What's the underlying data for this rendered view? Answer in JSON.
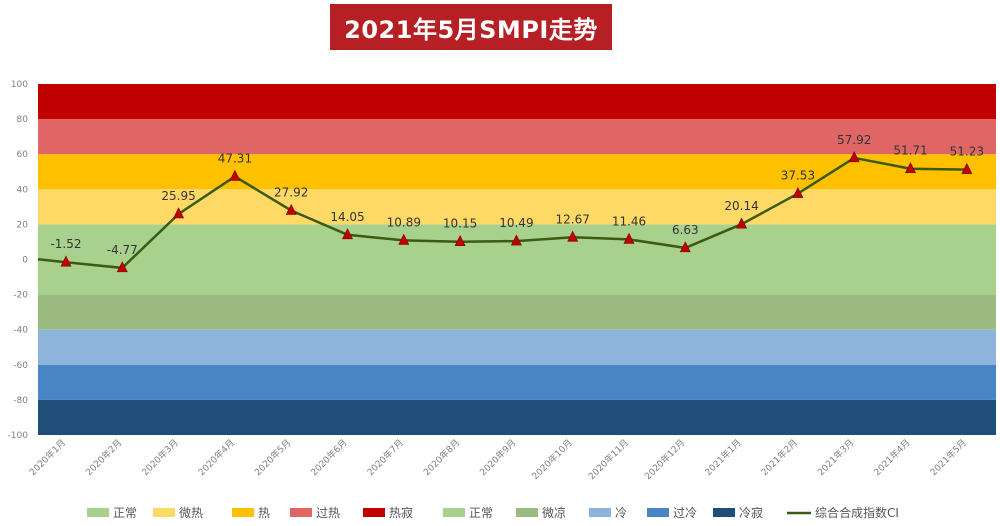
{
  "title": "2021年5月SMPI走势",
  "chart_data": {
    "type": "line",
    "title": "2021年5月SMPI走势",
    "xlabel": "",
    "ylabel": "",
    "ylim": [
      -100,
      100
    ],
    "yticks": [
      100,
      80,
      60,
      40,
      20,
      0,
      -20,
      -40,
      -60,
      -80,
      -100
    ],
    "grid": false,
    "legend_position": "bottom",
    "categories": [
      "2020年1月",
      "2020年2月",
      "2020年3月",
      "2020年4月",
      "2020年5月",
      "2020年6月",
      "2020年7月",
      "2020年8月",
      "2020年9月",
      "2020年10月",
      "2020年11月",
      "2020年12月",
      "2021年1月",
      "2021年2月",
      "2021年3月",
      "2021年4月",
      "2021年5月"
    ],
    "series": [
      {
        "name": "综合合成指数CI",
        "color": "#3c5a14",
        "marker_color": "#c00000",
        "values": [
          -1.52,
          -4.77,
          25.95,
          47.31,
          27.92,
          14.05,
          10.89,
          10.15,
          10.49,
          12.67,
          11.46,
          6.63,
          20.14,
          37.53,
          57.92,
          51.71,
          51.23
        ],
        "labels": [
          "-1.52",
          "-4.77",
          "25.95",
          "47.31",
          "27.92",
          "14.05",
          "10.89",
          "10.15",
          "10.49",
          "12.67",
          "11.46",
          "6.63",
          "20.14",
          "37.53",
          "57.92",
          "51.71",
          "51.23"
        ]
      }
    ],
    "bands": [
      {
        "name": "正常",
        "from": 0,
        "to": 20,
        "color": "#a9d18e"
      },
      {
        "name": "微热",
        "from": 20,
        "to": 40,
        "color": "#ffd966"
      },
      {
        "name": "热",
        "from": 40,
        "to": 60,
        "color": "#ffc000"
      },
      {
        "name": "过热",
        "from": 60,
        "to": 80,
        "color": "#e06666"
      },
      {
        "name": "热寂",
        "from": 80,
        "to": 100,
        "color": "#c00000"
      },
      {
        "name": "正常",
        "from": -20,
        "to": 0,
        "color": "#a9d18e"
      },
      {
        "name": "微凉",
        "from": -40,
        "to": -20,
        "color": "#9bbb80"
      },
      {
        "name": "冷",
        "from": -60,
        "to": -40,
        "color": "#8eb4dc"
      },
      {
        "name": "过冷",
        "from": -80,
        "to": -60,
        "color": "#4a86c5"
      },
      {
        "name": "冷寂",
        "from": -100,
        "to": -80,
        "color": "#1f4e79"
      }
    ]
  }
}
